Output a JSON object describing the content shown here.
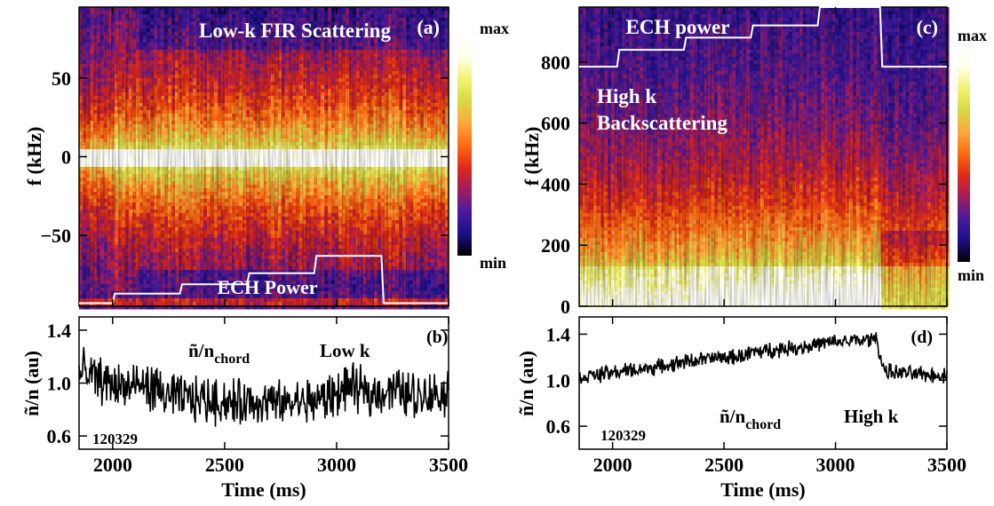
{
  "chart_data": [
    {
      "type": "heatmap",
      "panel_label": "(a)",
      "title": "Low-k FIR Scattering",
      "xlabel": "",
      "ylabel": "f (kHz)",
      "xlim": [
        1850,
        3500
      ],
      "ylim": [
        -95,
        95
      ],
      "yticks": [
        50,
        0,
        -50
      ],
      "ytick_labels": [
        "50",
        "0",
        "−50"
      ],
      "colorbar": {
        "top_label": "max",
        "bottom_label": "min",
        "colors": [
          "#000000",
          "#1b0f86",
          "#4a1a9c",
          "#a01d60",
          "#e02818",
          "#ff6a10",
          "#ffa63c",
          "#d8d840",
          "#f2f270",
          "#ffffe8",
          "#ffffff"
        ]
      },
      "annotations": [
        {
          "text": "ECH Power"
        }
      ],
      "ech_power_trace": {
        "x": [
          1850,
          2000,
          2010,
          2300,
          2310,
          2600,
          2610,
          2900,
          2910,
          3200,
          3210,
          3500
        ],
        "y": [
          -93,
          -93,
          -87,
          -87,
          -81,
          -81,
          -74,
          -74,
          -63,
          -63,
          -93,
          -93
        ]
      }
    },
    {
      "type": "line",
      "panel_label": "(b)",
      "annotations": [
        {
          "text": "ñ/n",
          "subscript": "chord"
        },
        {
          "text": "Low k"
        },
        {
          "text": "120329"
        }
      ],
      "xlabel": "Time (ms)",
      "ylabel": "ñ/n (au)",
      "xlim": [
        1850,
        3500
      ],
      "ylim": [
        0.5,
        1.5
      ],
      "xticks": [
        2000,
        2500,
        3000,
        3500
      ],
      "yticks": [
        1.4,
        1.0,
        0.6
      ],
      "ytick_labels": [
        "1.4",
        "1.0",
        "0.6"
      ],
      "series": [
        {
          "x": [
            1850,
            1950,
            2050,
            2150,
            2250,
            2350,
            2450,
            2550,
            2650,
            2750,
            2850,
            2950,
            3050,
            3150,
            3250,
            3350,
            3450,
            3500
          ],
          "y": [
            1.08,
            1.02,
            0.97,
            0.98,
            0.9,
            0.88,
            0.87,
            0.85,
            0.86,
            0.84,
            0.86,
            0.88,
            0.97,
            0.92,
            0.95,
            0.91,
            0.92,
            0.93
          ]
        }
      ]
    },
    {
      "type": "heatmap",
      "panel_label": "(c)",
      "xlabel": "",
      "ylabel": "f (kHz)",
      "xlim": [
        1850,
        3500
      ],
      "ylim": [
        0,
        980
      ],
      "yticks": [
        800,
        600,
        400,
        200,
        0
      ],
      "ytick_labels": [
        "800",
        "600",
        "400",
        "200",
        "0"
      ],
      "colorbar": {
        "top_label": "max",
        "bottom_label": "min",
        "colors": [
          "#000000",
          "#1b0f86",
          "#4a1a9c",
          "#a01d60",
          "#e02818",
          "#ff6a10",
          "#ffa63c",
          "#d8d840",
          "#f2f270",
          "#ffffe8",
          "#ffffff"
        ]
      },
      "annotations": [
        {
          "text": "ECH power"
        },
        {
          "text": "High k"
        },
        {
          "text": "Backscattering"
        }
      ],
      "ech_power_trace": {
        "x": [
          1850,
          2020,
          2030,
          2320,
          2330,
          2620,
          2630,
          2920,
          2930,
          3200,
          3210,
          3500
        ],
        "y": [
          785,
          785,
          840,
          840,
          880,
          880,
          920,
          920,
          980,
          980,
          785,
          785
        ]
      }
    },
    {
      "type": "line",
      "panel_label": "(d)",
      "annotations": [
        {
          "text": "ñ/n",
          "subscript": "chord"
        },
        {
          "text": "High k"
        },
        {
          "text": "120329"
        }
      ],
      "xlabel": "Time (ms)",
      "ylabel": "ñ/n (au)",
      "xlim": [
        1850,
        3500
      ],
      "ylim": [
        0.4,
        1.55
      ],
      "xticks": [
        2000,
        2500,
        3000,
        3500
      ],
      "yticks": [
        1.4,
        1.0,
        0.6
      ],
      "ytick_labels": [
        "1.4",
        "1.0",
        "0.6"
      ],
      "series": [
        {
          "x": [
            1850,
            1950,
            2050,
            2150,
            2250,
            2350,
            2450,
            2550,
            2650,
            2750,
            2850,
            2950,
            3050,
            3150,
            3180,
            3220,
            3300,
            3400,
            3500
          ],
          "y": [
            1.03,
            1.05,
            1.08,
            1.1,
            1.13,
            1.17,
            1.19,
            1.2,
            1.25,
            1.27,
            1.29,
            1.32,
            1.34,
            1.35,
            1.37,
            1.08,
            1.06,
            1.05,
            1.04
          ]
        }
      ]
    }
  ]
}
